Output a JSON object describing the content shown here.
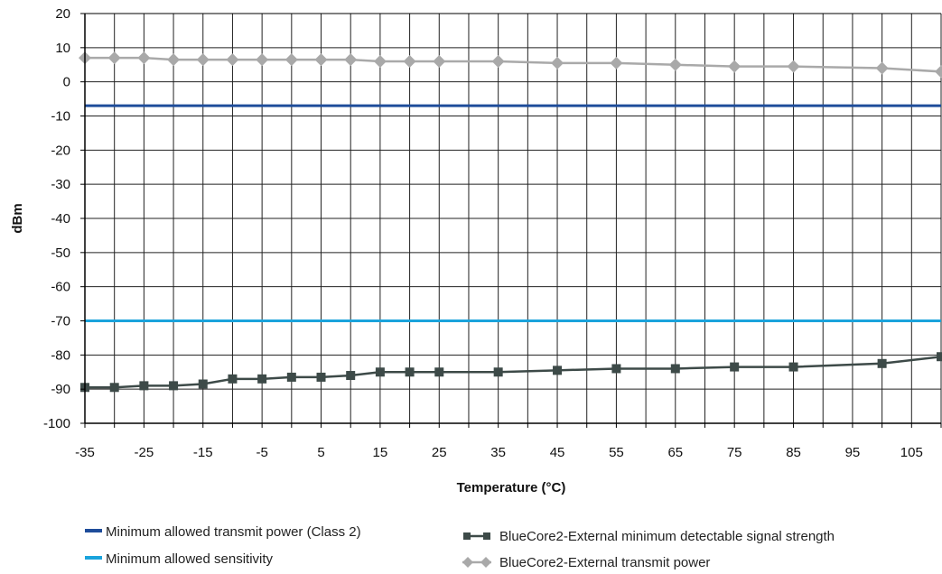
{
  "chart_data": {
    "type": "line",
    "title": "",
    "xlabel": "Temperature (°C)",
    "ylabel": "dBm",
    "xlim": [
      -35,
      110
    ],
    "ylim": [
      -100,
      20
    ],
    "x_ticks": [
      -35,
      -25,
      -15,
      -5,
      5,
      15,
      25,
      35,
      45,
      55,
      65,
      75,
      85,
      95,
      105
    ],
    "y_ticks": [
      20,
      10,
      0,
      -10,
      -20,
      -30,
      -40,
      -50,
      -60,
      -70,
      -80,
      -90,
      -100
    ],
    "grid": true,
    "legend_position": "bottom",
    "series": [
      {
        "name": "Minimum allowed transmit power (Class 2)",
        "color": "#1e4c9a",
        "marker": "none",
        "x": [
          -35,
          110
        ],
        "y": [
          -7,
          -7
        ]
      },
      {
        "name": "Minimum allowed sensitivity",
        "color": "#1aa3dc",
        "marker": "none",
        "x": [
          -35,
          110
        ],
        "y": [
          -70,
          -70
        ]
      },
      {
        "name": "BlueCore2-External minimum detectable signal strength",
        "color": "#3d4a48",
        "marker": "square",
        "x": [
          -35,
          -30,
          -25,
          -20,
          -15,
          -10,
          -5,
          0,
          5,
          10,
          15,
          20,
          25,
          35,
          45,
          55,
          65,
          75,
          85,
          100,
          110
        ],
        "y": [
          -89.5,
          -89.5,
          -89,
          -89,
          -88.5,
          -87,
          -87,
          -86.5,
          -86.5,
          -86,
          -85,
          -85,
          -85,
          -85,
          -84.5,
          -84,
          -84,
          -83.5,
          -83.5,
          -82.5,
          -80.5
        ]
      },
      {
        "name": "BlueCore2-External transmit power",
        "color": "#a9a9a9",
        "marker": "diamond",
        "x": [
          -35,
          -30,
          -25,
          -20,
          -15,
          -10,
          -5,
          0,
          5,
          10,
          15,
          20,
          25,
          35,
          45,
          55,
          65,
          75,
          85,
          100,
          110
        ],
        "y": [
          7,
          7,
          7,
          6.5,
          6.5,
          6.5,
          6.5,
          6.5,
          6.5,
          6.5,
          6,
          6,
          6,
          6,
          5.5,
          5.5,
          5,
          4.5,
          4.5,
          4,
          3
        ]
      }
    ]
  }
}
